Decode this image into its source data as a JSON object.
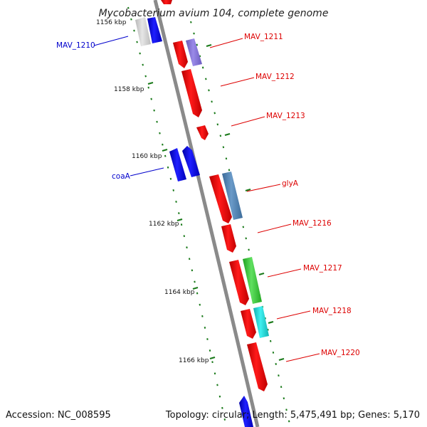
{
  "title": "Mycobacterium avium 104, complete genome",
  "footer": {
    "accession": "Accession: NC_008595",
    "summary": "Topology: circular; Length: 5,475,491 bp; Genes: 5,170"
  },
  "colors": {
    "backbone": "#8a8a8a",
    "gc_dots": "#1a7a1a",
    "red": "#ee0000",
    "blue": "#0000ee",
    "label_red": "#dd0000",
    "label_blue": "#0000cc"
  },
  "scale_labels": [
    "1156 kbp",
    "1158 kbp",
    "1160 kbp",
    "1162 kbp",
    "1164 kbp",
    "1166 kbp"
  ],
  "gene_labels": {
    "MAV_1210": "MAV_1210",
    "MAV_1211": "MAV_1211",
    "MAV_1212": "MAV_1212",
    "MAV_1213": "MAV_1213",
    "coaA": "coaA",
    "glyA": "glyA",
    "MAV_1216": "MAV_1216",
    "MAV_1217": "MAV_1217",
    "MAV_1218": "MAV_1218",
    "MAV_1220": "MAV_1220"
  }
}
